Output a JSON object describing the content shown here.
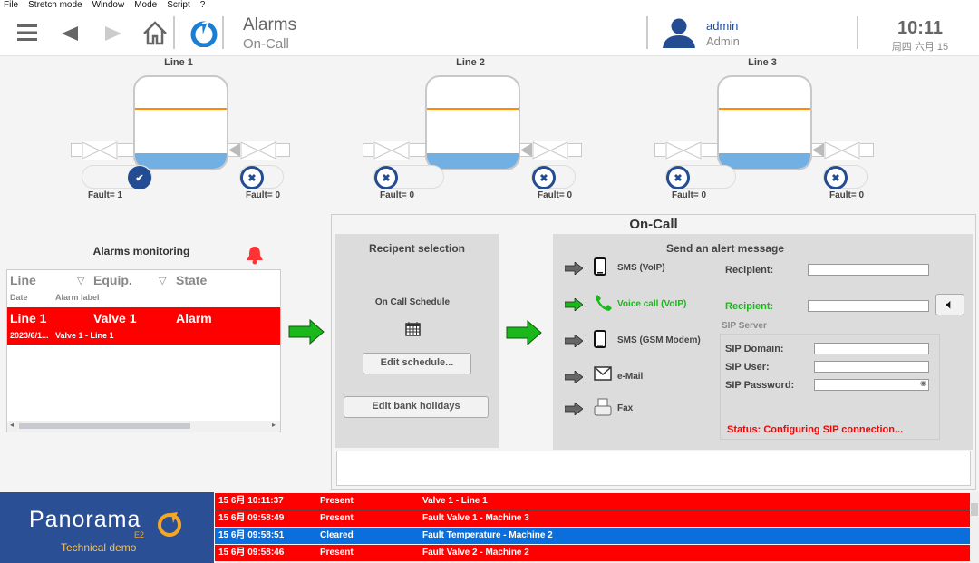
{
  "menu": [
    "File",
    "Stretch mode",
    "Window",
    "Mode",
    "Script",
    "?"
  ],
  "header": {
    "title": "Alarms",
    "subtitle": "On-Call",
    "user_name": "admin",
    "user_role": "Admin",
    "time": "10:11",
    "date": "周四 六月 15"
  },
  "lines": [
    {
      "label": "Line 1",
      "left_fault": "Fault= 1",
      "left_on": true,
      "right_fault": "Fault= 0",
      "right_on": false
    },
    {
      "label": "Line 2",
      "left_fault": "Fault= 0",
      "left_on": false,
      "right_fault": "Fault= 0",
      "right_on": false
    },
    {
      "label": "Line 3",
      "left_fault": "Fault= 0",
      "left_on": false,
      "right_fault": "Fault= 0",
      "right_on": false
    }
  ],
  "monitor": {
    "title": "Alarms monitoring",
    "col_line": "Line",
    "col_equip": "Equip.",
    "col_state": "State",
    "col_date": "Date",
    "col_label": "Alarm label",
    "row": {
      "line": "Line 1",
      "equip": "Valve 1",
      "state": "Alarm",
      "date": "2023/6/1...",
      "label": "Valve 1 - Line 1"
    }
  },
  "oncall": {
    "title": "On-Call",
    "recipient_title": "Recipent selection",
    "schedule_label": "On Call Schedule",
    "edit_schedule": "Edit schedule...",
    "edit_holidays": "Edit bank holidays",
    "send_title": "Send an alert message",
    "channels": [
      {
        "label": "SMS (VoIP)",
        "icon": "smartphone-icon",
        "active": false
      },
      {
        "label": "Voice call (VoIP)",
        "icon": "phone-icon",
        "active": true
      },
      {
        "label": "SMS (GSM Modem)",
        "icon": "smartphone-icon",
        "active": false
      },
      {
        "label": "e-Mail",
        "icon": "envelope-icon",
        "active": false
      },
      {
        "label": "Fax",
        "icon": "fax-icon",
        "active": false
      }
    ],
    "recipient1": "Recipient:",
    "recipient2": "Recipient:",
    "sip_server": "SIP Server",
    "sip_domain": "SIP Domain:",
    "sip_user": "SIP User:",
    "sip_password": "SIP Password:",
    "status": "Status: Configuring SIP connection..."
  },
  "footer": {
    "brand": "Panorama",
    "brand_sub": "E2",
    "tagline": "Technical demo",
    "alarms": [
      {
        "time": "15 6月 10:11:37",
        "state": "Present",
        "label": "Valve 1 - Line 1",
        "color": "#ff0000"
      },
      {
        "time": "15 6月 09:58:49",
        "state": "Present",
        "label": "Fault Valve 1 - Machine 3",
        "color": "#ff0000"
      },
      {
        "time": "15 6月 09:58:51",
        "state": "Cleared",
        "label": "Fault Temperature - Machine 2",
        "color": "#0a6fdc"
      },
      {
        "time": "15 6月 09:58:46",
        "state": "Present",
        "label": "Fault Valve 2 - Machine 2",
        "color": "#ff0000"
      }
    ]
  },
  "colors": {
    "accent": "#244c93",
    "alarm": "#ff0000",
    "active_green": "#1bb81b",
    "tank_fill": "#72b0e4",
    "tank_level": "#ff8c00"
  }
}
